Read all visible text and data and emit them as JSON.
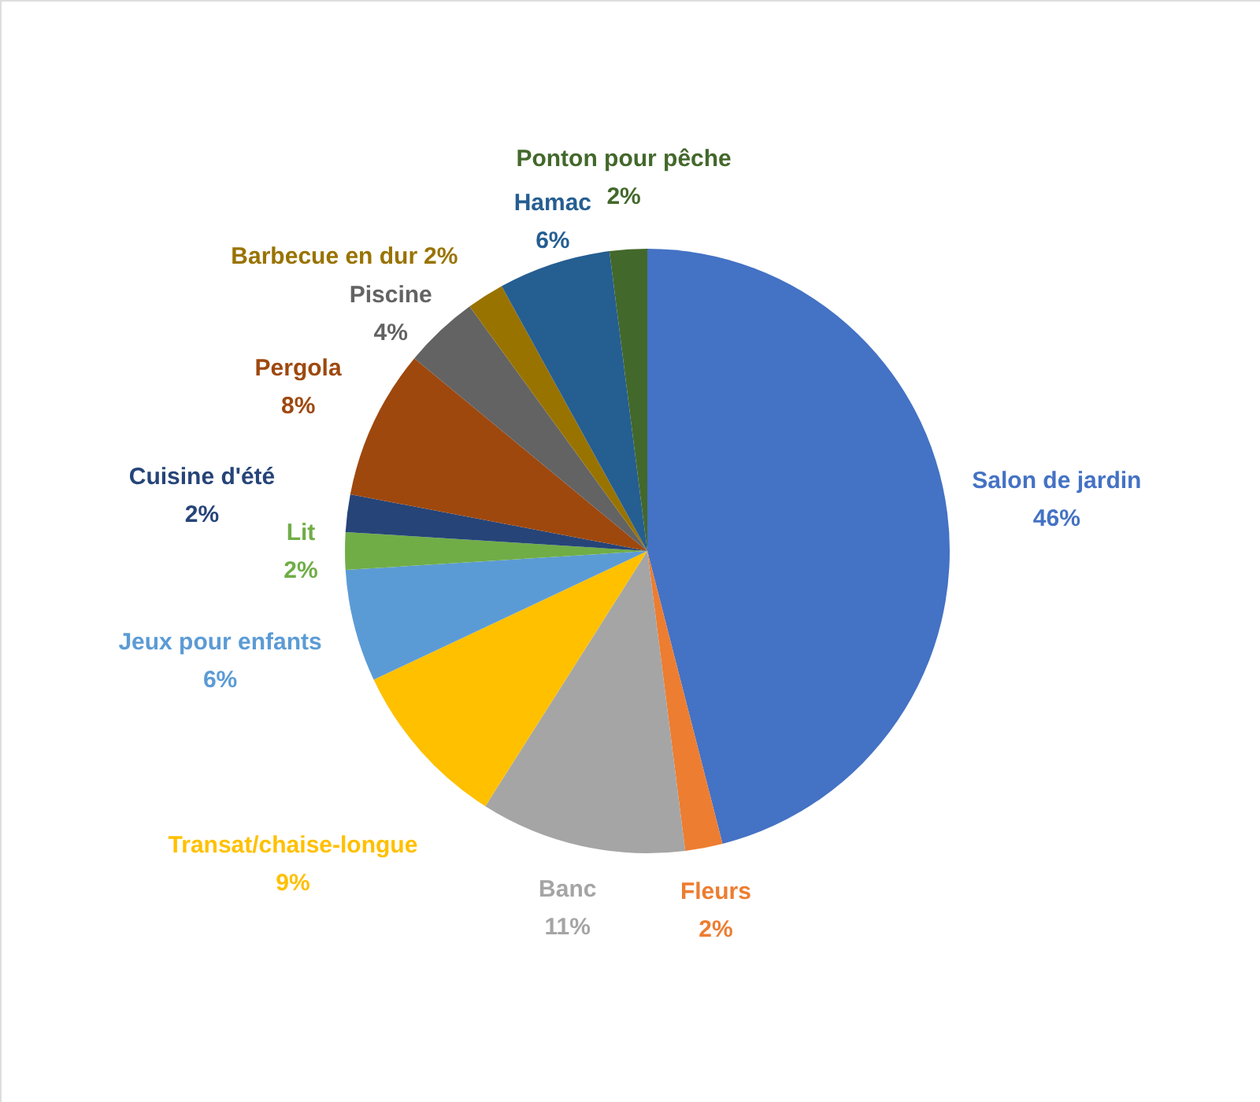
{
  "chart_data": {
    "type": "pie",
    "categories": [
      "Salon de jardin",
      "Fleurs",
      "Banc",
      "Transat/chaise-longue",
      "Jeux pour enfants",
      "Lit",
      "Cuisine d'été",
      "Pergola",
      "Piscine",
      "Barbecue en dur",
      "Hamac",
      "Ponton pour pêche"
    ],
    "values": [
      46,
      2,
      11,
      9,
      6,
      2,
      2,
      8,
      4,
      2,
      6,
      2
    ],
    "colors": [
      "#4472c4",
      "#ed7d31",
      "#a5a5a5",
      "#ffc000",
      "#5b9bd5",
      "#70ad47",
      "#264478",
      "#9e480e",
      "#636363",
      "#997300",
      "#255e91",
      "#43682b"
    ],
    "value_labels": [
      "46%",
      "2%",
      "11%",
      "9%",
      "6%",
      "2%",
      "2%",
      "8%",
      "4%",
      "2%",
      "6%",
      "2%"
    ]
  }
}
